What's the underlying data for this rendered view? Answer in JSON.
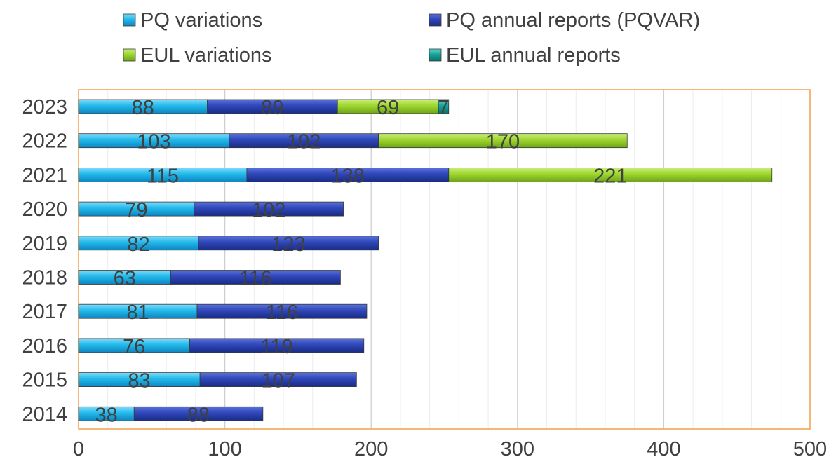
{
  "chart_data": {
    "type": "bar",
    "orientation": "horizontal",
    "stacked": true,
    "categories": [
      "2023",
      "2022",
      "2021",
      "2020",
      "2019",
      "2018",
      "2017",
      "2016",
      "2015",
      "2014"
    ],
    "series": [
      {
        "name": "PQ variations",
        "color": "#22B8EA",
        "values": [
          88,
          103,
          115,
          79,
          82,
          63,
          81,
          76,
          83,
          38
        ]
      },
      {
        "name": "PQ annual reports (PQVAR)",
        "color": "#2E46B8",
        "values": [
          89,
          102,
          138,
          102,
          123,
          116,
          116,
          119,
          107,
          88
        ]
      },
      {
        "name": "EUL variations",
        "color": "#9ED52E",
        "values": [
          69,
          170,
          221,
          null,
          null,
          null,
          null,
          null,
          null,
          null
        ]
      },
      {
        "name": "EUL annual reports",
        "color": "#17A398",
        "values": [
          7,
          null,
          null,
          null,
          null,
          null,
          null,
          null,
          null,
          null
        ]
      }
    ],
    "xlim": [
      0,
      500
    ],
    "xticks": [
      "0",
      "100",
      "200",
      "300",
      "400",
      "500"
    ],
    "title": "",
    "xlabel": "",
    "ylabel": "",
    "grid": true,
    "legend": "top",
    "plot_border_color": "#F0A04B"
  }
}
